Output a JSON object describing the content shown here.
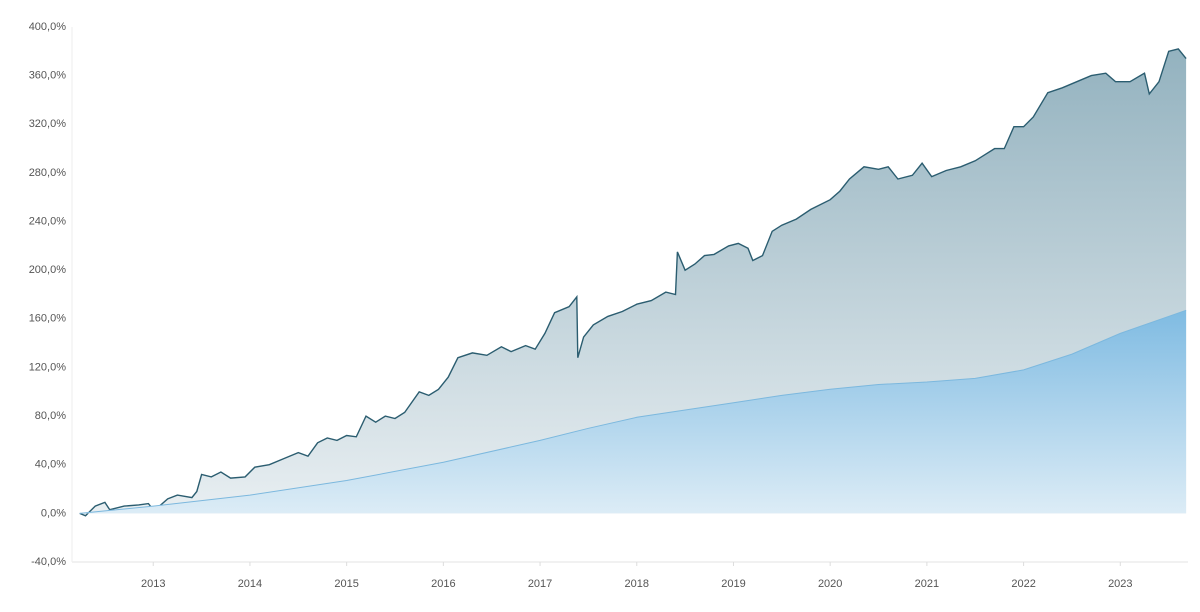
{
  "chart_data": {
    "type": "area",
    "series": [
      {
        "color": "#2b5d70",
        "fill_top": "#93b2bf",
        "fill_bottom": "#e9eff2",
        "x": [
          2012.24,
          2012.3,
          2012.4,
          2012.5,
          2012.55,
          2012.7,
          2012.85,
          2012.95,
          2013.0,
          2013.05,
          2013.15,
          2013.25,
          2013.4,
          2013.45,
          2013.5,
          2013.6,
          2013.7,
          2013.8,
          2013.95,
          2014.05,
          2014.2,
          2014.35,
          2014.5,
          2014.6,
          2014.7,
          2014.8,
          2014.9,
          2015.0,
          2015.1,
          2015.2,
          2015.3,
          2015.4,
          2015.5,
          2015.6,
          2015.75,
          2015.85,
          2015.95,
          2016.05,
          2016.15,
          2016.3,
          2016.45,
          2016.6,
          2016.7,
          2016.85,
          2016.95,
          2017.05,
          2017.15,
          2017.3,
          2017.38,
          2017.39,
          2017.45,
          2017.55,
          2017.7,
          2017.85,
          2018.0,
          2018.15,
          2018.3,
          2018.4,
          2018.42,
          2018.5,
          2018.6,
          2018.7,
          2018.8,
          2018.95,
          2019.05,
          2019.15,
          2019.2,
          2019.3,
          2019.4,
          2019.5,
          2019.65,
          2019.8,
          2020.0,
          2020.1,
          2020.2,
          2020.35,
          2020.5,
          2020.6,
          2020.7,
          2020.85,
          2020.95,
          2021.05,
          2021.2,
          2021.35,
          2021.5,
          2021.6,
          2021.7,
          2021.8,
          2021.9,
          2022.0,
          2022.1,
          2022.25,
          2022.4,
          2022.55,
          2022.7,
          2022.85,
          2022.95,
          2023.1,
          2023.25,
          2023.3,
          2023.4,
          2023.5,
          2023.6,
          2023.68
        ],
        "values": [
          0,
          -2,
          6,
          9,
          3,
          6,
          7,
          8,
          3,
          5,
          12,
          15,
          13,
          18,
          32,
          30,
          34,
          29,
          30,
          38,
          40,
          45,
          50,
          47,
          58,
          62,
          60,
          64,
          63,
          80,
          75,
          80,
          78,
          83,
          100,
          97,
          102,
          112,
          128,
          132,
          130,
          137,
          133,
          138,
          135,
          148,
          165,
          170,
          178,
          128,
          145,
          155,
          162,
          166,
          172,
          175,
          182,
          180,
          215,
          200,
          205,
          212,
          213,
          220,
          222,
          218,
          208,
          212,
          232,
          237,
          242,
          250,
          258,
          265,
          275,
          285,
          283,
          285,
          275,
          278,
          288,
          277,
          282,
          285,
          290,
          295,
          300,
          300,
          318,
          318,
          326,
          346,
          350,
          355,
          360,
          362,
          355,
          355,
          362,
          345,
          355,
          380,
          382,
          374
        ]
      },
      {
        "color": "#7cb8de",
        "fill_top": "#7fbbe2",
        "fill_bottom": "#dcecf6",
        "x": [
          2012.24,
          2012.5,
          2013,
          2014,
          2015,
          2016,
          2017,
          2017.5,
          2018,
          2019,
          2019.5,
          2020,
          2020.5,
          2021,
          2021.5,
          2022,
          2022.5,
          2023,
          2023.68
        ],
        "values": [
          0,
          2,
          6,
          15,
          27,
          42,
          60,
          70,
          79,
          91,
          97,
          102,
          106,
          108,
          111,
          118,
          131,
          148,
          167
        ]
      }
    ],
    "xlim": [
      2012.16,
      2023.7
    ],
    "xticks": [
      2013,
      2014,
      2015,
      2016,
      2017,
      2018,
      2019,
      2020,
      2021,
      2022,
      2023
    ],
    "ylim": [
      -40,
      400
    ],
    "yticks": [
      {
        "value": -40,
        "label": "-40,0%"
      },
      {
        "value": 0,
        "label": "0,0%"
      },
      {
        "value": 40,
        "label": "40,0%"
      },
      {
        "value": 80,
        "label": "80,0%"
      },
      {
        "value": 120,
        "label": "120,0%"
      },
      {
        "value": 160,
        "label": "160,0%"
      },
      {
        "value": 200,
        "label": "200,0%"
      },
      {
        "value": 240,
        "label": "240,0%"
      },
      {
        "value": 280,
        "label": "280,0%"
      },
      {
        "value": 320,
        "label": "320,0%"
      },
      {
        "value": 360,
        "label": "360,0%"
      },
      {
        "value": 400,
        "label": "400,0%"
      }
    ],
    "grid": false
  }
}
